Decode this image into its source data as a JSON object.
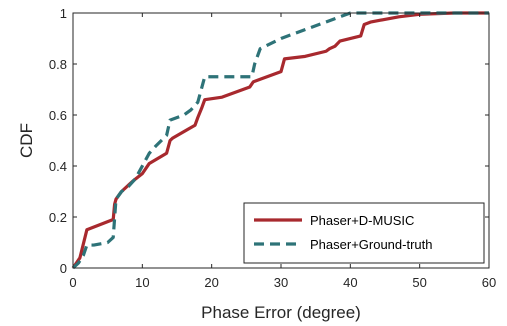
{
  "chart_data": {
    "type": "line",
    "title": "",
    "xlabel": "Phase Error (degree)",
    "ylabel": "CDF",
    "xlim": [
      0,
      60
    ],
    "ylim": [
      0,
      1
    ],
    "xticks": [
      0,
      10,
      20,
      30,
      40,
      50,
      60
    ],
    "yticks": [
      0,
      0.2,
      0.4,
      0.6,
      0.8,
      1
    ],
    "xtick_labels": [
      "0",
      "10",
      "20",
      "30",
      "40",
      "50",
      "60"
    ],
    "ytick_labels": [
      "0",
      "0.2",
      "0.4",
      "0.6",
      "0.8",
      "1"
    ],
    "grid": false,
    "legend_position": "bottom-right",
    "series": [
      {
        "name": "Phaser+D-MUSIC",
        "color": "#a8292e",
        "style": "solid",
        "x": [
          0,
          1,
          2,
          5.8,
          6,
          6.2,
          7,
          8.6,
          10,
          11,
          13.5,
          14,
          14.4,
          17.6,
          18,
          18.6,
          19,
          21.5,
          25.5,
          26,
          27,
          30,
          30.5,
          33.5,
          36.5,
          37,
          37.8,
          38.5,
          41.5,
          42,
          43,
          47,
          50,
          55,
          60
        ],
        "y": [
          0,
          0.04,
          0.15,
          0.19,
          0.25,
          0.27,
          0.3,
          0.34,
          0.37,
          0.41,
          0.45,
          0.5,
          0.51,
          0.56,
          0.59,
          0.63,
          0.66,
          0.67,
          0.71,
          0.73,
          0.74,
          0.77,
          0.82,
          0.83,
          0.85,
          0.86,
          0.87,
          0.89,
          0.91,
          0.955,
          0.965,
          0.985,
          0.995,
          1,
          1
        ]
      },
      {
        "name": "Phaser+Ground-truth",
        "color": "#2e7378",
        "style": "dashed",
        "x": [
          0,
          0.8,
          1.5,
          2,
          3,
          5,
          5.8,
          6.2,
          7,
          8,
          9,
          10,
          11,
          12,
          13.5,
          14,
          16,
          17,
          18,
          19,
          21,
          25.8,
          26.2,
          27,
          30,
          34,
          36,
          38,
          39.5,
          40,
          42,
          45,
          50,
          55,
          60
        ],
        "y": [
          0,
          0.02,
          0.05,
          0.09,
          0.09,
          0.1,
          0.12,
          0.27,
          0.3,
          0.32,
          0.35,
          0.4,
          0.45,
          0.48,
          0.52,
          0.58,
          0.6,
          0.62,
          0.65,
          0.75,
          0.75,
          0.75,
          0.8,
          0.86,
          0.9,
          0.94,
          0.96,
          0.98,
          0.995,
          1,
          1,
          1,
          1,
          1,
          1
        ]
      }
    ]
  }
}
